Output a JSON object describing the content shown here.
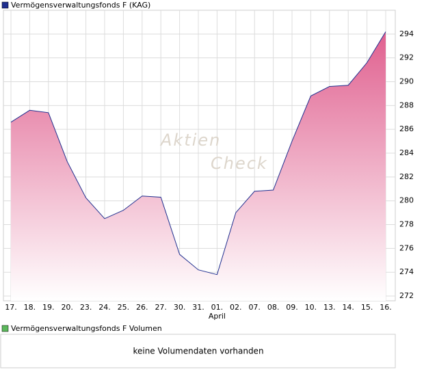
{
  "chart_data": {
    "type": "area",
    "title": "Vermögensverwaltungsfonds F (KAG)",
    "categories": [
      "17.",
      "18.",
      "19.",
      "20.",
      "23.",
      "24.",
      "25.",
      "26.",
      "27.",
      "30.",
      "31.",
      "01.",
      "02.",
      "07.",
      "08.",
      "09.",
      "10.",
      "13.",
      "14.",
      "15.",
      "16."
    ],
    "month_label": "April",
    "values": [
      286.6,
      287.6,
      287.4,
      283.3,
      280.25,
      278.5,
      279.2,
      280.4,
      280.3,
      275.5,
      274.2,
      273.8,
      279.0,
      280.8,
      280.9,
      285.0,
      288.8,
      289.6,
      289.7,
      291.6,
      294.2
    ],
    "color": "#e0608f",
    "line_color": "#1f2f8f",
    "ylim": [
      271.6,
      296
    ],
    "yticks": [
      272,
      274,
      276,
      278,
      280,
      282,
      284,
      286,
      288,
      290,
      292,
      294
    ],
    "grid": true,
    "watermark": [
      "Aktien",
      "Check"
    ],
    "volume": {
      "title": "Vermögensverwaltungsfonds F Volumen",
      "message": "keine Volumendaten vorhanden",
      "color": "#5cb85c"
    }
  }
}
